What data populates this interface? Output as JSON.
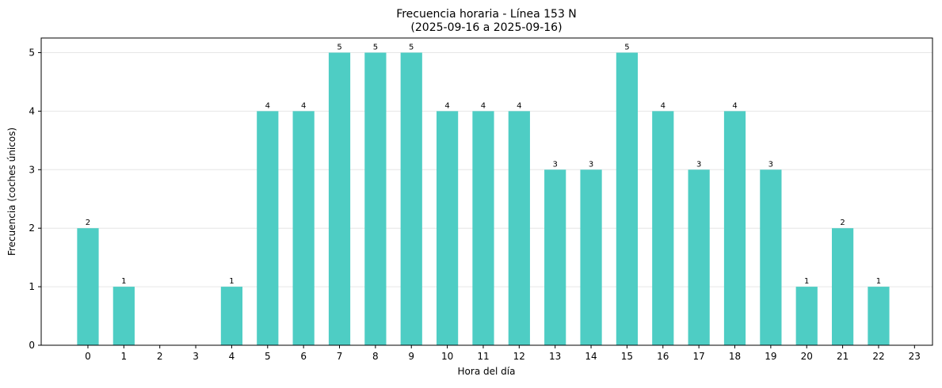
{
  "chart_data": {
    "type": "bar",
    "title": "Frecuencia horaria - Línea 153 N",
    "subtitle": "(2025-09-16 a 2025-09-16)",
    "xlabel": "Hora del día",
    "ylabel": "Frecuencia (coches únicos)",
    "categories": [
      "0",
      "1",
      "2",
      "3",
      "4",
      "5",
      "6",
      "7",
      "8",
      "9",
      "10",
      "11",
      "12",
      "13",
      "14",
      "15",
      "16",
      "17",
      "18",
      "19",
      "20",
      "21",
      "22",
      "23"
    ],
    "values": [
      2,
      1,
      0,
      0,
      1,
      4,
      4,
      5,
      5,
      5,
      4,
      4,
      4,
      3,
      3,
      5,
      4,
      3,
      4,
      3,
      1,
      2,
      1,
      0
    ],
    "ylim": [
      0,
      5.25
    ],
    "yticks": [
      0,
      1,
      2,
      3,
      4,
      5
    ],
    "grid": "horizontal",
    "bar_color": "#4ecdc4",
    "show_data_labels": true
  }
}
